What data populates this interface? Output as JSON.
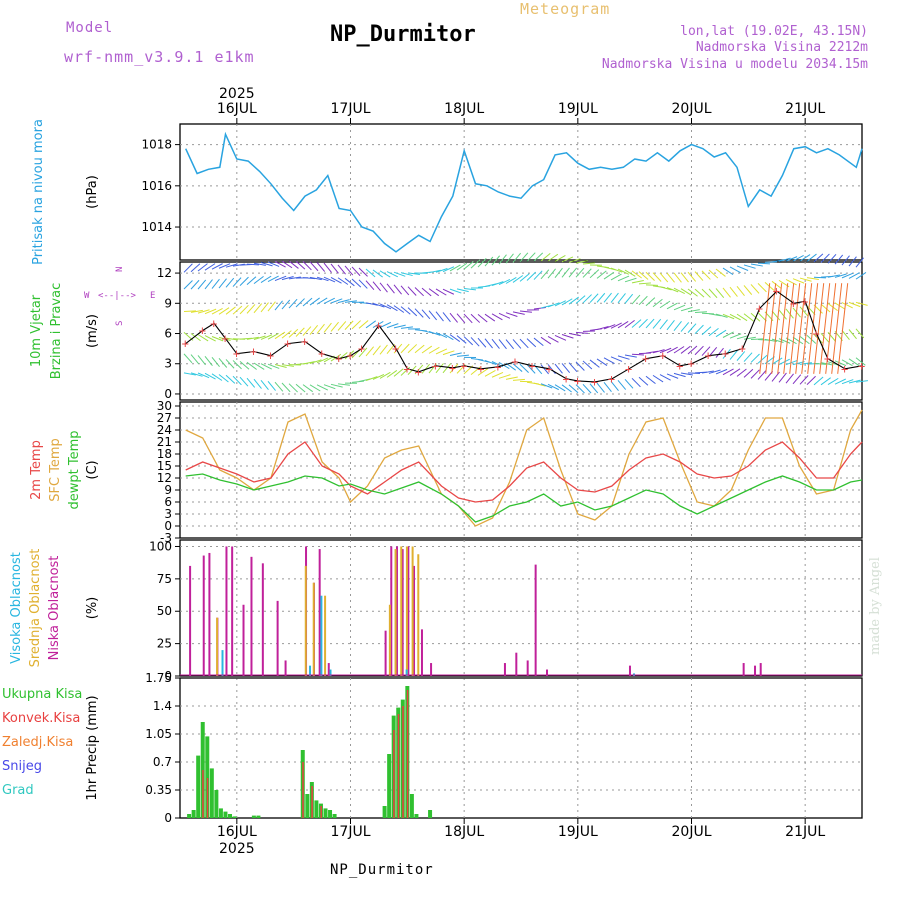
{
  "header": {
    "title": "NP_Durmitor",
    "subtitle": "Meteogram",
    "model_label": "Model",
    "model_name": "wrf-nmm_v3.9.1  e1km",
    "lonlat": "lon,lat (19.02E, 43.15N)",
    "elevation": "Nadmorska Visina 2212m",
    "model_elevation": "Nadmorska Visina u modelu 2034.15m",
    "footer": "NP_Durmitor",
    "credit": "made by Angel"
  },
  "colors": {
    "pressure": "#29a3e0",
    "temp2m": "#e84848",
    "sfc_temp": "#e0a840",
    "dewpt": "#30c030",
    "high_cloud": "#29b6e0",
    "mid_cloud": "#e0b030",
    "low_cloud": "#c0209a",
    "total_precip": "#30c030",
    "conv_precip": "#e84040",
    "snow": "#4848e8",
    "grad": "#30c8c0",
    "freezing_rain": "#f08030"
  },
  "chart_data": [
    {
      "type": "line",
      "panel": "pressure",
      "year": "2025",
      "x_labels": [
        "16JUL",
        "17JUL",
        "18JUL",
        "19JUL",
        "20JUL",
        "21JUL"
      ],
      "ylabel_side": "Pritisak na nivou mora",
      "ylabel": "(hPa)",
      "yticks": [
        1014,
        1016,
        1018
      ],
      "ylim": [
        1012.4,
        1019.0
      ],
      "series": [
        {
          "name": "Pritisak na nivou mora",
          "x": [
            15.55,
            15.65,
            15.75,
            15.85,
            15.9,
            16.0,
            16.1,
            16.2,
            16.3,
            16.4,
            16.5,
            16.6,
            16.7,
            16.8,
            16.9,
            17.0,
            17.1,
            17.2,
            17.3,
            17.4,
            17.5,
            17.6,
            17.7,
            17.8,
            17.9,
            18.0,
            18.1,
            18.2,
            18.3,
            18.4,
            18.5,
            18.6,
            18.7,
            18.8,
            18.9,
            19.0,
            19.1,
            19.2,
            19.3,
            19.4,
            19.5,
            19.6,
            19.7,
            19.8,
            19.9,
            20.0,
            20.1,
            20.2,
            20.3,
            20.4,
            20.5,
            20.6,
            20.7,
            20.8,
            20.9,
            21.0,
            21.1,
            21.2,
            21.3,
            21.45,
            21.5
          ],
          "values": [
            1017.8,
            1016.6,
            1016.8,
            1016.9,
            1018.5,
            1017.3,
            1017.2,
            1016.7,
            1016.1,
            1015.4,
            1014.8,
            1015.5,
            1015.8,
            1016.5,
            1014.9,
            1014.8,
            1014.0,
            1013.8,
            1013.2,
            1012.8,
            1013.2,
            1013.6,
            1013.3,
            1014.5,
            1015.5,
            1017.7,
            1016.1,
            1016.0,
            1015.7,
            1015.5,
            1015.4,
            1016.0,
            1016.3,
            1017.5,
            1017.6,
            1017.1,
            1016.8,
            1016.9,
            1016.8,
            1016.9,
            1017.3,
            1017.2,
            1017.6,
            1017.2,
            1017.7,
            1018.0,
            1017.8,
            1017.4,
            1017.6,
            1016.9,
            1015.0,
            1015.8,
            1015.5,
            1016.5,
            1017.8,
            1017.9,
            1017.6,
            1017.8,
            1017.5,
            1016.9,
            1017.8
          ]
        }
      ]
    },
    {
      "type": "line",
      "panel": "wind",
      "ylabel_side": "10m Vjetar Brzina i Pravac",
      "ylabel": "(m/s)",
      "compass": {
        "n": "N",
        "s": "S",
        "e": "E",
        "w": "W"
      },
      "yticks": [
        0,
        3,
        6,
        9,
        12
      ],
      "ylim": [
        -0.6,
        13.1
      ],
      "series": [
        {
          "name": "Brzina vjetra",
          "x": [
            15.55,
            15.7,
            15.8,
            15.9,
            16.0,
            16.15,
            16.3,
            16.45,
            16.6,
            16.75,
            16.9,
            17.0,
            17.1,
            17.25,
            17.4,
            17.5,
            17.6,
            17.75,
            17.9,
            18.0,
            18.15,
            18.3,
            18.45,
            18.6,
            18.75,
            18.9,
            19.0,
            19.15,
            19.3,
            19.45,
            19.6,
            19.75,
            19.9,
            20.0,
            20.15,
            20.3,
            20.45,
            20.6,
            20.75,
            20.9,
            21.0,
            21.1,
            21.2,
            21.35,
            21.5
          ],
          "values": [
            5.0,
            6.3,
            7.0,
            5.5,
            4.0,
            4.2,
            3.8,
            5.0,
            5.2,
            4.0,
            3.5,
            3.8,
            4.5,
            6.8,
            4.5,
            2.5,
            2.2,
            2.8,
            2.6,
            2.8,
            2.5,
            2.7,
            3.2,
            2.8,
            2.5,
            1.5,
            1.3,
            1.2,
            1.5,
            2.5,
            3.5,
            3.8,
            2.8,
            3.0,
            3.8,
            4.0,
            4.5,
            8.5,
            10.2,
            9.0,
            9.2,
            6.0,
            3.5,
            2.5,
            2.8
          ]
        }
      ]
    },
    {
      "type": "line",
      "panel": "temperature",
      "ylabels_side": [
        "2m Temp",
        "SFC Temp",
        "dewpt Temp"
      ],
      "ylabel": "(C)",
      "yticks": [
        -3,
        0,
        3,
        6,
        9,
        12,
        15,
        18,
        21,
        24,
        27,
        30
      ],
      "ylim": [
        -3,
        31
      ],
      "series": [
        {
          "name": "2m Temp",
          "x": [
            15.55,
            15.7,
            15.85,
            16.0,
            16.15,
            16.3,
            16.45,
            16.6,
            16.75,
            16.9,
            17.0,
            17.15,
            17.3,
            17.45,
            17.6,
            17.8,
            17.95,
            18.1,
            18.25,
            18.4,
            18.55,
            18.7,
            18.85,
            19.0,
            19.15,
            19.3,
            19.45,
            19.6,
            19.75,
            19.9,
            20.05,
            20.2,
            20.35,
            20.5,
            20.65,
            20.8,
            20.95,
            21.1,
            21.25,
            21.4,
            21.5
          ],
          "values": [
            14.0,
            16.0,
            14.5,
            13.0,
            11.0,
            12.0,
            18.0,
            21.0,
            15.0,
            13.0,
            10.0,
            8.0,
            11.0,
            14.0,
            16.0,
            10.0,
            7.0,
            6.0,
            6.5,
            10.0,
            14.5,
            16.0,
            12.0,
            9.0,
            8.5,
            10.0,
            14.0,
            17.0,
            18.0,
            16.0,
            13.0,
            12.0,
            12.5,
            15.0,
            19.0,
            21.0,
            17.0,
            12.0,
            12.0,
            18.0,
            21.0
          ]
        },
        {
          "name": "SFC Temp",
          "x": [
            15.55,
            15.7,
            15.85,
            16.0,
            16.15,
            16.3,
            16.45,
            16.6,
            16.75,
            16.9,
            17.0,
            17.15,
            17.3,
            17.45,
            17.6,
            17.8,
            17.95,
            18.1,
            18.25,
            18.4,
            18.55,
            18.7,
            18.85,
            19.0,
            19.15,
            19.3,
            19.45,
            19.6,
            19.75,
            19.9,
            20.05,
            20.2,
            20.35,
            20.5,
            20.65,
            20.8,
            20.95,
            21.1,
            21.25,
            21.4,
            21.5
          ],
          "values": [
            24.0,
            22.0,
            14.0,
            12.0,
            9.0,
            12.0,
            26.0,
            28.0,
            16.0,
            12.0,
            6.0,
            10.0,
            17.0,
            19.0,
            20.0,
            8.0,
            5.0,
            0.0,
            2.0,
            11.0,
            24.0,
            27.0,
            14.0,
            3.0,
            1.5,
            5.0,
            18.0,
            26.0,
            27.0,
            16.0,
            6.0,
            5.0,
            9.0,
            19.0,
            27.0,
            27.0,
            15.0,
            8.0,
            9.0,
            24.0,
            29.0
          ]
        },
        {
          "name": "dewpt Temp",
          "x": [
            15.55,
            15.7,
            15.85,
            16.0,
            16.15,
            16.3,
            16.45,
            16.6,
            16.75,
            16.9,
            17.0,
            17.15,
            17.3,
            17.45,
            17.6,
            17.8,
            17.95,
            18.1,
            18.25,
            18.4,
            18.55,
            18.7,
            18.85,
            19.0,
            19.15,
            19.3,
            19.45,
            19.6,
            19.75,
            19.9,
            20.05,
            20.2,
            20.35,
            20.5,
            20.65,
            20.8,
            20.95,
            21.1,
            21.25,
            21.4,
            21.5
          ],
          "values": [
            12.5,
            13.0,
            11.5,
            10.5,
            9.0,
            10.0,
            11.0,
            12.5,
            12.0,
            10.0,
            10.5,
            9.0,
            8.0,
            9.5,
            11.0,
            8.0,
            5.0,
            1.0,
            2.5,
            5.0,
            6.0,
            8.0,
            5.0,
            6.0,
            4.0,
            5.0,
            7.0,
            9.0,
            8.0,
            5.0,
            3.0,
            5.0,
            7.0,
            9.0,
            11.0,
            12.5,
            11.0,
            9.0,
            9.0,
            11.0,
            11.5
          ]
        }
      ]
    },
    {
      "type": "bar",
      "panel": "clouds",
      "ylabels_side": [
        "Visoka Oblacnost",
        "Srednja Oblacnost",
        "Niska Oblacnost"
      ],
      "ylabel": "(%)",
      "yticks": [
        0,
        25,
        50,
        75,
        100
      ],
      "ylim": [
        0,
        105
      ],
      "series": [
        {
          "name": "Niska Oblacnost",
          "x": [
            15.58,
            15.7,
            15.75,
            15.82,
            15.9,
            15.95,
            16.05,
            16.12,
            16.22,
            16.35,
            16.42,
            16.6,
            16.67,
            16.72,
            16.8,
            17.3,
            17.35,
            17.4,
            17.45,
            17.5,
            17.55,
            17.62,
            17.7,
            18.35,
            18.45,
            18.55,
            18.62,
            18.72,
            19.45,
            20.45,
            20.55,
            20.6
          ],
          "values": [
            85,
            93,
            95,
            45,
            100,
            100,
            55,
            92,
            87,
            58,
            12,
            100,
            72,
            98,
            10,
            35,
            100,
            100,
            98,
            100,
            85,
            36,
            10,
            10,
            18,
            12,
            86,
            5,
            8,
            10,
            8,
            10
          ]
        },
        {
          "name": "Srednja Oblacnost",
          "x": [
            15.8,
            16.58,
            16.65,
            16.75,
            17.32,
            17.37,
            17.42,
            17.47,
            17.52,
            17.57
          ],
          "values": [
            45,
            85,
            72,
            62,
            55,
            98,
            100,
            100,
            100,
            94
          ]
        },
        {
          "name": "Visoka Oblacnost",
          "x": [
            15.83,
            16.6,
            16.7,
            16.78,
            17.45,
            19.45
          ],
          "values": [
            20,
            8,
            62,
            5,
            5,
            2
          ]
        }
      ]
    },
    {
      "type": "bar",
      "panel": "precip",
      "ylabels_side": [
        "Ukupna Kisa",
        "Konvek.Kisa",
        "Zaledj.Kisa",
        "Snijeg",
        "Grad"
      ],
      "ylabel": "1hr Precip (mm)",
      "yticks": [
        0,
        0.35,
        0.7,
        1.05,
        1.4,
        1.75
      ],
      "ylim": [
        0,
        1.75
      ],
      "series": [
        {
          "name": "Ukupna Kisa",
          "x": [
            15.58,
            15.62,
            15.66,
            15.7,
            15.74,
            15.78,
            15.82,
            15.86,
            15.9,
            15.94,
            15.98,
            16.15,
            16.19,
            16.58,
            16.62,
            16.66,
            16.7,
            16.74,
            16.78,
            16.82,
            16.86,
            17.3,
            17.34,
            17.38,
            17.42,
            17.46,
            17.5,
            17.54,
            17.58,
            17.7
          ],
          "values": [
            0.05,
            0.1,
            0.78,
            1.2,
            1.02,
            0.62,
            0.35,
            0.12,
            0.08,
            0.05,
            0.02,
            0.03,
            0.03,
            0.85,
            0.3,
            0.45,
            0.22,
            0.18,
            0.12,
            0.1,
            0.05,
            0.15,
            0.8,
            1.28,
            1.38,
            1.48,
            1.65,
            0.3,
            0.05,
            0.1
          ]
        },
        {
          "name": "Konvek.Kisa",
          "x": [
            15.7,
            15.74,
            16.58,
            16.66,
            16.74,
            17.38,
            17.42,
            17.46,
            17.5
          ],
          "values": [
            0.6,
            0.5,
            0.7,
            0.4,
            0.15,
            1.1,
            1.3,
            1.4,
            1.6
          ]
        }
      ]
    }
  ]
}
